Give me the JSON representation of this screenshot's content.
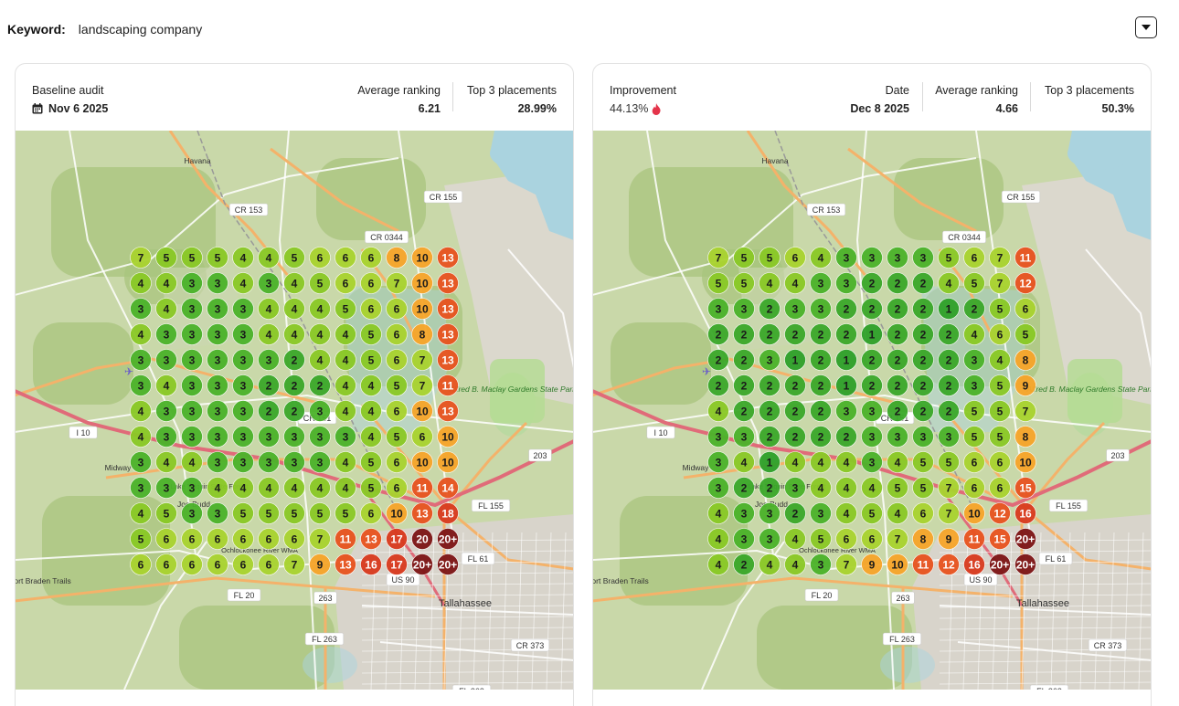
{
  "keyword": {
    "label": "Keyword:",
    "value": "landscaping company"
  },
  "colors": {
    "rank_1": "#2fa12a",
    "rank_2": "#3ba82a",
    "rank_3": "#4bb32a",
    "rank_4_5": "#8ac926",
    "rank_6_7": "#a9d32f",
    "rank_8_10": "#f7a52a",
    "rank_11_15": "#e8531f",
    "rank_16_19": "#d93a1e",
    "rank_20_plus": "#7d1515"
  },
  "map_labels": [
    "Havana",
    "CR 155",
    "CR 153",
    "CR 0344",
    "I 10",
    "CR 151",
    "Midway",
    "Lake Talquin State Forest",
    "Joe Budd",
    "Ochlockonee River WMA",
    "Fort Braden Trails",
    "FL 20",
    "263",
    "FL 263",
    "US 90",
    "Tallahassee",
    "FL 61",
    "FL 155",
    "FL 363",
    "CR 373",
    "Alfred B. Maclay Gardens State Park",
    "203"
  ],
  "cards": [
    {
      "id": "baseline",
      "left_label": "Baseline audit",
      "left_value": "Nov 6 2025",
      "left_icon": "calendar-icon",
      "mid_label": null,
      "mid_value": null,
      "avg_label": "Average ranking",
      "avg_value": "6.21",
      "top3_label": "Top 3 placements",
      "top3_value": "28.99%",
      "grid": [
        [
          "7",
          "5",
          "5",
          "5",
          "4",
          "4",
          "5",
          "6",
          "6",
          "6",
          "8",
          "10",
          "13"
        ],
        [
          "4",
          "4",
          "3",
          "3",
          "4",
          "3",
          "4",
          "5",
          "6",
          "6",
          "7",
          "10",
          "13"
        ],
        [
          "3",
          "4",
          "3",
          "3",
          "3",
          "4",
          "4",
          "4",
          "5",
          "6",
          "6",
          "10",
          "13"
        ],
        [
          "4",
          "3",
          "3",
          "3",
          "3",
          "4",
          "4",
          "4",
          "4",
          "5",
          "6",
          "8",
          "13"
        ],
        [
          "3",
          "3",
          "3",
          "3",
          "3",
          "3",
          "2",
          "4",
          "4",
          "5",
          "6",
          "7",
          "13"
        ],
        [
          "3",
          "4",
          "3",
          "3",
          "3",
          "2",
          "2",
          "2",
          "4",
          "4",
          "5",
          "7",
          "11"
        ],
        [
          "4",
          "3",
          "3",
          "3",
          "3",
          "2",
          "2",
          "3",
          "4",
          "4",
          "6",
          "10",
          "13"
        ],
        [
          "4",
          "3",
          "3",
          "3",
          "3",
          "3",
          "3",
          "3",
          "3",
          "4",
          "5",
          "6",
          "10",
          "14"
        ],
        [
          "3",
          "4",
          "4",
          "3",
          "3",
          "3",
          "3",
          "3",
          "4",
          "5",
          "6",
          "10",
          "10",
          "14"
        ],
        [
          "3",
          "3",
          "3",
          "4",
          "4",
          "4",
          "4",
          "4",
          "4",
          "5",
          "6",
          "11",
          "14",
          "19"
        ],
        [
          "4",
          "5",
          "3",
          "3",
          "5",
          "5",
          "5",
          "5",
          "5",
          "6",
          "10",
          "13",
          "18",
          "20+"
        ],
        [
          "5",
          "6",
          "6",
          "6",
          "6",
          "6",
          "6",
          "7",
          "11",
          "13",
          "17",
          "20",
          "20+"
        ],
        [
          "6",
          "6",
          "6",
          "6",
          "6",
          "6",
          "7",
          "9",
          "13",
          "16",
          "17",
          "20+",
          "20+"
        ]
      ]
    },
    {
      "id": "current",
      "left_label": "Improvement",
      "left_value": "44.13%",
      "left_icon": "flame-icon",
      "mid_label": "Date",
      "mid_value": "Dec 8 2025",
      "avg_label": "Average ranking",
      "avg_value": "4.66",
      "top3_label": "Top 3 placements",
      "top3_value": "50.3%",
      "grid": [
        [
          "7",
          "5",
          "5",
          "6",
          "4",
          "3",
          "3",
          "3",
          "3",
          "5",
          "6",
          "7",
          "11"
        ],
        [
          "5",
          "5",
          "4",
          "4",
          "3",
          "3",
          "2",
          "2",
          "2",
          "4",
          "5",
          "7",
          "12"
        ],
        [
          "3",
          "3",
          "2",
          "3",
          "3",
          "2",
          "2",
          "2",
          "2",
          "1",
          "2",
          "5",
          "6",
          "11"
        ],
        [
          "2",
          "2",
          "2",
          "2",
          "2",
          "2",
          "1",
          "2",
          "2",
          "2",
          "4",
          "6",
          "5"
        ],
        [
          "2",
          "2",
          "3",
          "1",
          "2",
          "1",
          "2",
          "2",
          "2",
          "2",
          "3",
          "4",
          "8"
        ],
        [
          "2",
          "2",
          "2",
          "2",
          "2",
          "1",
          "2",
          "2",
          "2",
          "2",
          "3",
          "5",
          "9"
        ],
        [
          "4",
          "2",
          "2",
          "2",
          "2",
          "3",
          "3",
          "2",
          "2",
          "2",
          "5",
          "5",
          "7"
        ],
        [
          "3",
          "3",
          "2",
          "2",
          "2",
          "2",
          "3",
          "3",
          "3",
          "3",
          "5",
          "5",
          "8"
        ],
        [
          "3",
          "4",
          "1",
          "4",
          "4",
          "4",
          "3",
          "4",
          "5",
          "5",
          "6",
          "6",
          "10"
        ],
        [
          "3",
          "2",
          "2",
          "3",
          "4",
          "4",
          "4",
          "5",
          "5",
          "7",
          "6",
          "6",
          "15"
        ],
        [
          "4",
          "3",
          "3",
          "2",
          "3",
          "4",
          "5",
          "4",
          "6",
          "7",
          "10",
          "12",
          "16"
        ],
        [
          "4",
          "3",
          "3",
          "4",
          "5",
          "6",
          "6",
          "7",
          "8",
          "9",
          "11",
          "15",
          "20+"
        ],
        [
          "4",
          "2",
          "4",
          "4",
          "3",
          "7",
          "9",
          "10",
          "11",
          "12",
          "16",
          "20+",
          "20+"
        ]
      ]
    }
  ]
}
